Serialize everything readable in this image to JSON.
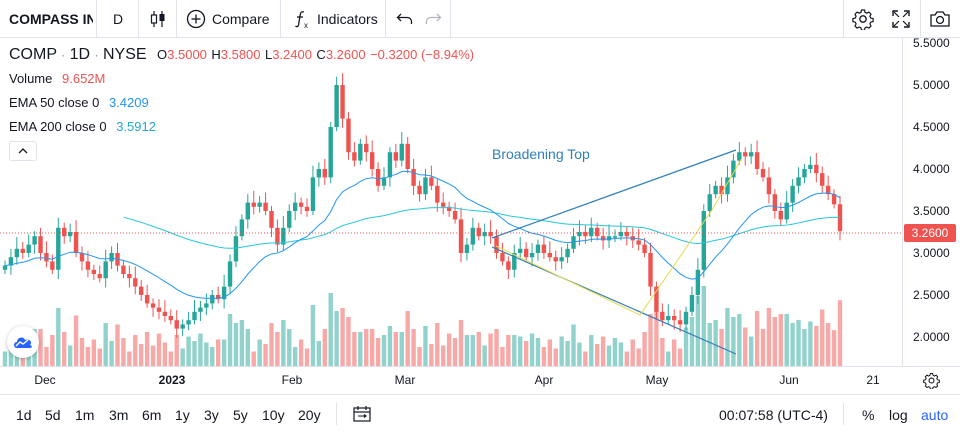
{
  "toolbar": {
    "symbol": "COMPASS IN",
    "interval": "D",
    "compare_label": "Compare",
    "indicators_label": "Indicators"
  },
  "legend": {
    "symbol": "COMP",
    "interval": "1D",
    "exchange": "NYSE",
    "open_label": "O",
    "open": "3.5000",
    "high_label": "H",
    "high": "3.5800",
    "low_label": "L",
    "low": "3.2400",
    "close_label": "C",
    "close": "3.2600",
    "change": "−0.3200 (−8.94%)",
    "volume_label": "Volume",
    "volume": "9.652M",
    "ema50_label": "EMA 50 close 0",
    "ema50": "3.4209",
    "ema200_label": "EMA 200 close 0",
    "ema200": "3.5912",
    "sep": "·"
  },
  "drawing": {
    "annotation": "Broadening Top"
  },
  "price_axis": {
    "ticks": [
      "5.5000",
      "5.0000",
      "4.5000",
      "4.0000",
      "3.5000",
      "3.0000",
      "2.5000",
      "2.0000"
    ],
    "last_price": "3.2600"
  },
  "time_axis": {
    "ticks": [
      "Dec",
      "2023",
      "Feb",
      "Mar",
      "Apr",
      "May",
      "Jun",
      "21"
    ]
  },
  "bottom": {
    "ranges": [
      "1d",
      "5d",
      "1m",
      "3m",
      "6m",
      "1y",
      "3y",
      "5y",
      "10y",
      "20y"
    ],
    "clock": "00:07:58 (UTC-4)",
    "percent": "%",
    "log": "log",
    "auto": "auto"
  },
  "colors": {
    "up": "#26a69a",
    "down": "#ef5350",
    "ema50": "#2196f3",
    "ema200": "#26c6da",
    "pattern": "#2f7fba",
    "zigzag": "#e8d84a"
  },
  "chart_data": {
    "type": "candlestick",
    "title": "COMP · 1D · NYSE",
    "ylim": [
      1.7,
      5.6
    ],
    "series": [
      {
        "name": "close",
        "values": [
          2.85,
          2.95,
          3.05,
          3.0,
          3.1,
          3.2,
          3.0,
          2.9,
          2.8,
          3.3,
          3.2,
          3.25,
          3.0,
          2.9,
          2.8,
          2.75,
          2.7,
          2.9,
          3.0,
          2.85,
          2.75,
          2.7,
          2.6,
          2.5,
          2.4,
          2.35,
          2.3,
          2.25,
          2.2,
          2.1,
          2.15,
          2.2,
          2.3,
          2.35,
          2.4,
          2.5,
          2.45,
          2.6,
          2.9,
          3.2,
          3.4,
          3.6,
          3.55,
          3.6,
          3.5,
          3.3,
          3.1,
          3.3,
          3.5,
          3.6,
          3.55,
          3.5,
          3.9,
          4.0,
          3.9,
          4.5,
          5.0,
          4.6,
          4.2,
          4.1,
          4.3,
          4.2,
          4.0,
          3.8,
          3.9,
          4.2,
          4.1,
          4.3,
          4.0,
          3.8,
          3.7,
          3.9,
          3.8,
          3.6,
          3.55,
          3.5,
          3.4,
          3.0,
          3.1,
          3.3,
          3.2,
          3.25,
          3.2,
          3.0,
          2.9,
          2.8,
          3.0,
          3.05,
          2.95,
          3.0,
          3.1,
          3.0,
          2.95,
          2.9,
          2.95,
          3.05,
          3.2,
          3.25,
          3.2,
          3.3,
          3.2,
          3.15,
          3.2,
          3.2,
          3.25,
          3.2,
          3.15,
          3.1,
          3.0,
          2.6,
          2.3,
          2.2,
          2.25,
          2.2,
          2.15,
          2.3,
          2.5,
          2.8,
          3.5,
          3.7,
          3.8,
          3.7,
          3.9,
          4.1,
          4.2,
          4.15,
          4.2,
          4.0,
          3.9,
          3.7,
          3.5,
          3.4,
          3.6,
          3.8,
          3.9,
          4.0,
          4.05,
          3.95,
          3.8,
          3.7,
          3.58,
          3.26
        ]
      }
    ]
  }
}
